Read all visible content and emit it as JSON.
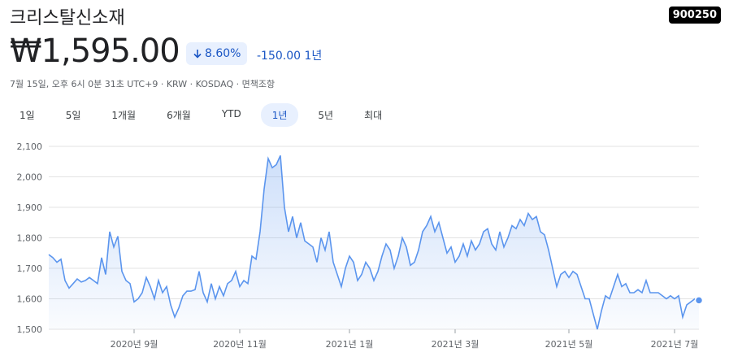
{
  "header": {
    "title": "크리스탈신소재",
    "ticker": "900250",
    "price": "₩1,595.00",
    "change_pct": "8.60%",
    "change": "-150.00",
    "period": "1년",
    "info": "7월 15일, 오후 6시 0분 31초 UTC+9 · KRW · KOSDAQ · 면책조항"
  },
  "tabs": {
    "items": [
      "1일",
      "5일",
      "1개월",
      "6개월",
      "YTD",
      "1년",
      "5년",
      "최대"
    ],
    "selected": 5
  },
  "chart_data": {
    "type": "area",
    "x": [
      0,
      1,
      2,
      3,
      4,
      5,
      6,
      7,
      8,
      9,
      10,
      11,
      12,
      13,
      14,
      15,
      16,
      17,
      18,
      19,
      20,
      21,
      22,
      23,
      24,
      25,
      26,
      27,
      28,
      29,
      30,
      31,
      32,
      33,
      34,
      35,
      36,
      37,
      38,
      39,
      40,
      41,
      42,
      43,
      44,
      45,
      46,
      47,
      48,
      49,
      50,
      51,
      52,
      53,
      54,
      55,
      56,
      57,
      58,
      59,
      60,
      61,
      62,
      63,
      64,
      65,
      66,
      67,
      68,
      69,
      70,
      71,
      72,
      73,
      74,
      75,
      76,
      77,
      78,
      79,
      80,
      81,
      82,
      83,
      84,
      85,
      86,
      87,
      88,
      89,
      90,
      91,
      92,
      93,
      94,
      95,
      96,
      97,
      98,
      99,
      100,
      101,
      102,
      103,
      104,
      105,
      106,
      107,
      108,
      109,
      110,
      111,
      112,
      113,
      114,
      115,
      116,
      117,
      118,
      119,
      120,
      121,
      122,
      123,
      124,
      125,
      126,
      127,
      128,
      129,
      130,
      131,
      132,
      133,
      134,
      135,
      136,
      137,
      138,
      139,
      140,
      141,
      142,
      143,
      144,
      145,
      146,
      147,
      148,
      149,
      150,
      151,
      152,
      153,
      154,
      155,
      156,
      157,
      158,
      159,
      160
    ],
    "series": [
      {
        "name": "900250",
        "color": "#5b95ee",
        "values": [
          1745,
          1735,
          1720,
          1730,
          1660,
          1635,
          1650,
          1665,
          1655,
          1660,
          1670,
          1660,
          1650,
          1735,
          1680,
          1820,
          1770,
          1805,
          1690,
          1660,
          1650,
          1590,
          1600,
          1620,
          1670,
          1640,
          1600,
          1660,
          1620,
          1640,
          1580,
          1540,
          1570,
          1610,
          1625,
          1625,
          1630,
          1690,
          1620,
          1590,
          1650,
          1600,
          1640,
          1610,
          1650,
          1660,
          1690,
          1640,
          1660,
          1650,
          1740,
          1730,
          1820,
          1960,
          2060,
          2030,
          2040,
          2070,
          1900,
          1820,
          1870,
          1800,
          1850,
          1790,
          1780,
          1770,
          1720,
          1800,
          1760,
          1820,
          1720,
          1680,
          1640,
          1700,
          1740,
          1720,
          1660,
          1680,
          1720,
          1700,
          1660,
          1690,
          1740,
          1780,
          1760,
          1700,
          1740,
          1800,
          1770,
          1710,
          1720,
          1760,
          1820,
          1840,
          1870,
          1820,
          1850,
          1800,
          1750,
          1770,
          1720,
          1740,
          1780,
          1740,
          1790,
          1760,
          1780,
          1820,
          1830,
          1780,
          1760,
          1820,
          1770,
          1800,
          1840,
          1830,
          1860,
          1840,
          1880,
          1860,
          1870,
          1820,
          1810,
          1760,
          1700,
          1640,
          1680,
          1690,
          1670,
          1690,
          1680,
          1640,
          1600,
          1600,
          1550,
          1500,
          1560,
          1610,
          1600,
          1640,
          1680,
          1640,
          1650,
          1620,
          1620,
          1630,
          1620,
          1660,
          1620,
          1620,
          1620,
          1610,
          1600,
          1610,
          1600,
          1610,
          1540,
          1580,
          1590,
          1600,
          1595
        ]
      }
    ],
    "xlim": [
      0,
      160
    ],
    "xticks": [
      {
        "value": 21,
        "label": "2020년 9월"
      },
      {
        "value": 47,
        "label": "2020년 11월"
      },
      {
        "value": 74,
        "label": "2021년 1월"
      },
      {
        "value": 100,
        "label": "2021년 3월"
      },
      {
        "value": 128,
        "label": "2021년 5월"
      },
      {
        "value": 154,
        "label": "2021년 7월"
      }
    ],
    "ylim": [
      1500,
      2100
    ],
    "yticks": [
      {
        "value": 1500,
        "label": "1,500"
      },
      {
        "value": 1600,
        "label": "1,600"
      },
      {
        "value": 1700,
        "label": "1,700"
      },
      {
        "value": 1800,
        "label": "1,800"
      },
      {
        "value": 1900,
        "label": "1,900"
      },
      {
        "value": 2000,
        "label": "2,000"
      },
      {
        "value": 2100,
        "label": "2,100"
      }
    ],
    "grid": true
  }
}
